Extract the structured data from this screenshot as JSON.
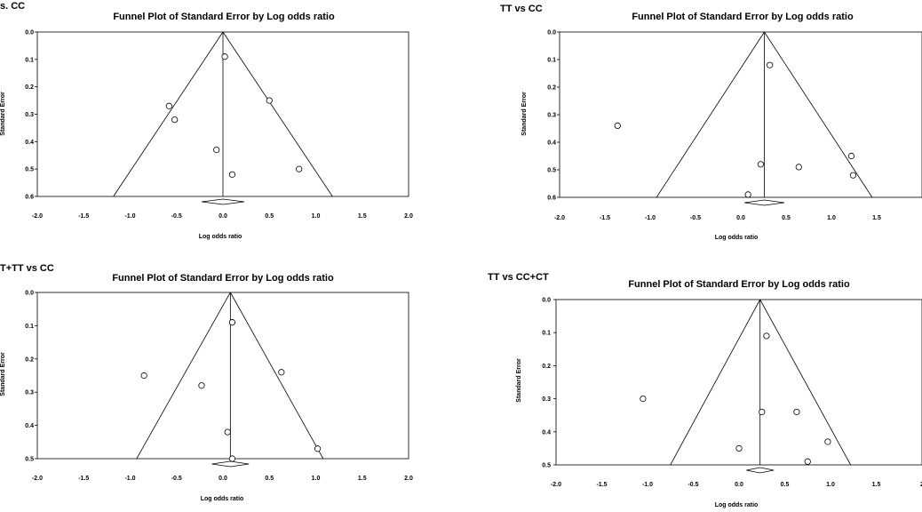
{
  "chart_data": [
    {
      "type": "scatter",
      "panel_label": "s. CC",
      "title": "Funnel Plot of Standard Error by Log odds ratio",
      "xlabel": "Log odds ratio",
      "ylabel": "Standard Error",
      "xlim": [
        -2.0,
        2.0
      ],
      "ylim": [
        0.0,
        0.6
      ],
      "xticks": [
        "-2.0",
        "-1.5",
        "-1.0",
        "-0.5",
        "0.0",
        "0.5",
        "1.0",
        "1.5",
        "2.0"
      ],
      "yticks": [
        "0.0",
        "0.1",
        "0.2",
        "0.3",
        "0.4",
        "0.5",
        "0.6"
      ],
      "pooled": 0.0,
      "funnel_base": [
        -1.18,
        1.18
      ],
      "points": [
        {
          "x": 0.02,
          "y": 0.09
        },
        {
          "x": -0.58,
          "y": 0.27
        },
        {
          "x": -0.52,
          "y": 0.32
        },
        {
          "x": 0.5,
          "y": 0.25
        },
        {
          "x": -0.07,
          "y": 0.43
        },
        {
          "x": 0.1,
          "y": 0.52
        },
        {
          "x": 0.82,
          "y": 0.5
        }
      ],
      "diamond": [
        -0.23,
        0.23
      ]
    },
    {
      "type": "scatter",
      "panel_label": "TT vs CC",
      "title": "Funnel Plot of Standard Error by Log odds ratio",
      "xlabel": "Log odds ratio",
      "ylabel": "Standard Error",
      "xlim": [
        -2.0,
        2.0
      ],
      "ylim": [
        0.0,
        0.6
      ],
      "xticks": [
        "-2.0",
        "-1.5",
        "-1.0",
        "-0.5",
        "0.0",
        "0.5",
        "1.0",
        "1.5"
      ],
      "yticks": [
        "0.0",
        "0.1",
        "0.2",
        "0.3",
        "0.4",
        "0.5",
        "0.6"
      ],
      "pooled": 0.26,
      "funnel_base": [
        -0.93,
        1.45
      ],
      "points": [
        {
          "x": 0.32,
          "y": 0.12
        },
        {
          "x": -1.36,
          "y": 0.34
        },
        {
          "x": 0.22,
          "y": 0.48
        },
        {
          "x": 0.64,
          "y": 0.49
        },
        {
          "x": 1.22,
          "y": 0.45
        },
        {
          "x": 1.24,
          "y": 0.52
        },
        {
          "x": 0.08,
          "y": 0.59
        }
      ],
      "diamond": [
        0.04,
        0.48
      ]
    },
    {
      "type": "scatter",
      "panel_label": "T+TT vs CC",
      "title": "Funnel Plot of Standard Error by Log odds ratio",
      "xlabel": "Log odds ratio",
      "ylabel": "Standard Error",
      "xlim": [
        -2.0,
        2.0
      ],
      "ylim": [
        0.0,
        0.5
      ],
      "xticks": [
        "-2.0",
        "-1.5",
        "-1.0",
        "-0.5",
        "0.0",
        "0.5",
        "1.0",
        "1.5",
        "2.0"
      ],
      "yticks": [
        "0.0",
        "0.1",
        "0.2",
        "0.3",
        "0.4",
        "0.5"
      ],
      "pooled": 0.08,
      "funnel_base": [
        -0.93,
        1.08
      ],
      "points": [
        {
          "x": 0.1,
          "y": 0.09
        },
        {
          "x": -0.85,
          "y": 0.25
        },
        {
          "x": -0.23,
          "y": 0.28
        },
        {
          "x": 0.63,
          "y": 0.24
        },
        {
          "x": 0.05,
          "y": 0.42
        },
        {
          "x": 1.02,
          "y": 0.47
        },
        {
          "x": 0.1,
          "y": 0.5
        }
      ],
      "diamond": [
        -0.12,
        0.28
      ]
    },
    {
      "type": "scatter",
      "panel_label": "TT vs CC+CT",
      "title": "Funnel Plot of Standard Error by Log odds ratio",
      "xlabel": "Log odds ratio",
      "ylabel": "Standard Error",
      "xlim": [
        -2.0,
        2.0
      ],
      "ylim": [
        0.0,
        0.5
      ],
      "xticks": [
        "-2.0",
        "-1.5",
        "-1.0",
        "-0.5",
        "0.0",
        "0.5",
        "1.0",
        "1.5",
        "2"
      ],
      "yticks": [
        "0.0",
        "0.1",
        "0.2",
        "0.3",
        "0.4",
        "0.5"
      ],
      "pooled": 0.23,
      "funnel_base": [
        -0.75,
        1.22
      ],
      "points": [
        {
          "x": 0.3,
          "y": 0.11
        },
        {
          "x": -1.05,
          "y": 0.3
        },
        {
          "x": 0.25,
          "y": 0.34
        },
        {
          "x": 0.63,
          "y": 0.34
        },
        {
          "x": 0.97,
          "y": 0.43
        },
        {
          "x": 0.0,
          "y": 0.45
        },
        {
          "x": 0.75,
          "y": 0.49
        }
      ],
      "diamond": [
        0.08,
        0.38
      ]
    }
  ]
}
